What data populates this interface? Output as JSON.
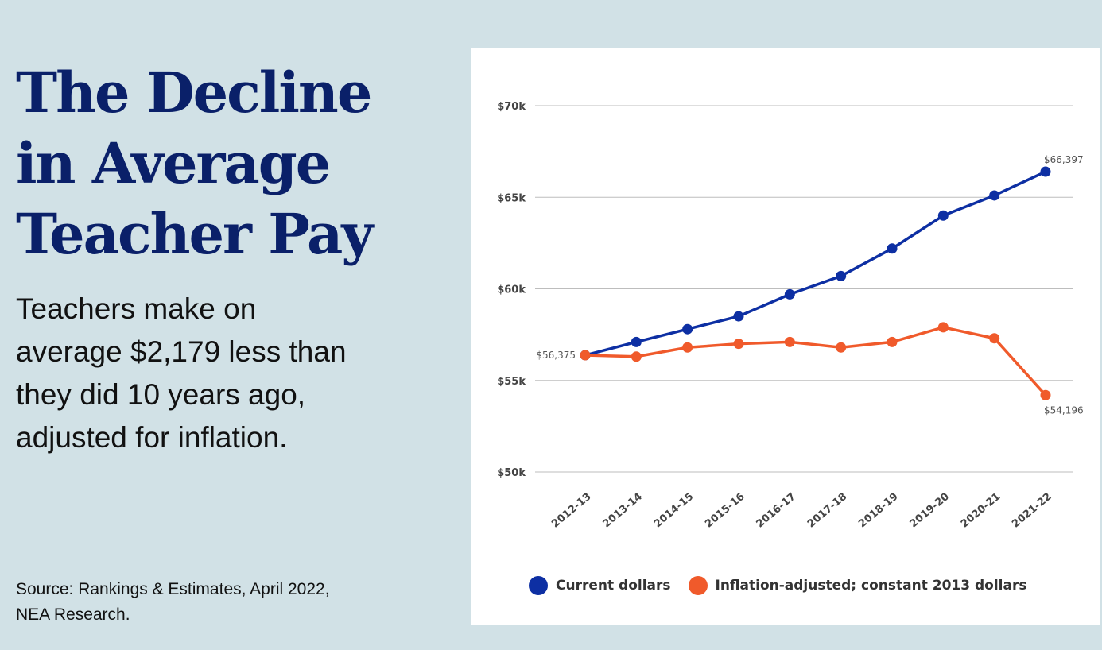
{
  "headline": {
    "title": "The Decline\nin Average\nTeacher Pay",
    "subtitle": "Teachers make on\naverage $2,179 less than\nthey did 10 years ago,\nadjusted for inflation.",
    "source": "Source: Rankings & Estimates, April 2022,\nNEA Research."
  },
  "colors": {
    "current": "#0d2fa3",
    "adjusted": "#f05a2b",
    "grid": "#bdbdbd",
    "title": "#0a2069"
  },
  "chart_data": {
    "type": "line",
    "title": "",
    "xlabel": "",
    "ylabel": "",
    "x": [
      "2012-13",
      "2013-14",
      "2014-15",
      "2015-16",
      "2016-17",
      "2017-18",
      "2018-19",
      "2019-20",
      "2020-21",
      "2021-22"
    ],
    "y_ticks": [
      {
        "value": 50000,
        "label": "$50k"
      },
      {
        "value": 55000,
        "label": "$55k"
      },
      {
        "value": 60000,
        "label": "$60k"
      },
      {
        "value": 65000,
        "label": "$65k"
      },
      {
        "value": 70000,
        "label": "$70k"
      }
    ],
    "ylim": [
      50000,
      70000
    ],
    "grid": true,
    "legend_position": "bottom",
    "series": [
      {
        "name": "Current dollars",
        "color_key": "current",
        "values": [
          56375,
          57100,
          57800,
          58500,
          59700,
          60700,
          62200,
          64000,
          65100,
          66397
        ]
      },
      {
        "name": "Inflation-adjusted; constant 2013 dollars",
        "color_key": "adjusted",
        "values": [
          56375,
          56300,
          56800,
          57000,
          57100,
          56800,
          57100,
          57900,
          57300,
          54196
        ]
      }
    ],
    "annotations": [
      {
        "series": 0,
        "index": 0,
        "text": "$56,375",
        "side": "left"
      },
      {
        "series": 0,
        "index": 9,
        "text": "$66,397",
        "side": "above"
      },
      {
        "series": 1,
        "index": 9,
        "text": "$54,196",
        "side": "below"
      }
    ]
  }
}
